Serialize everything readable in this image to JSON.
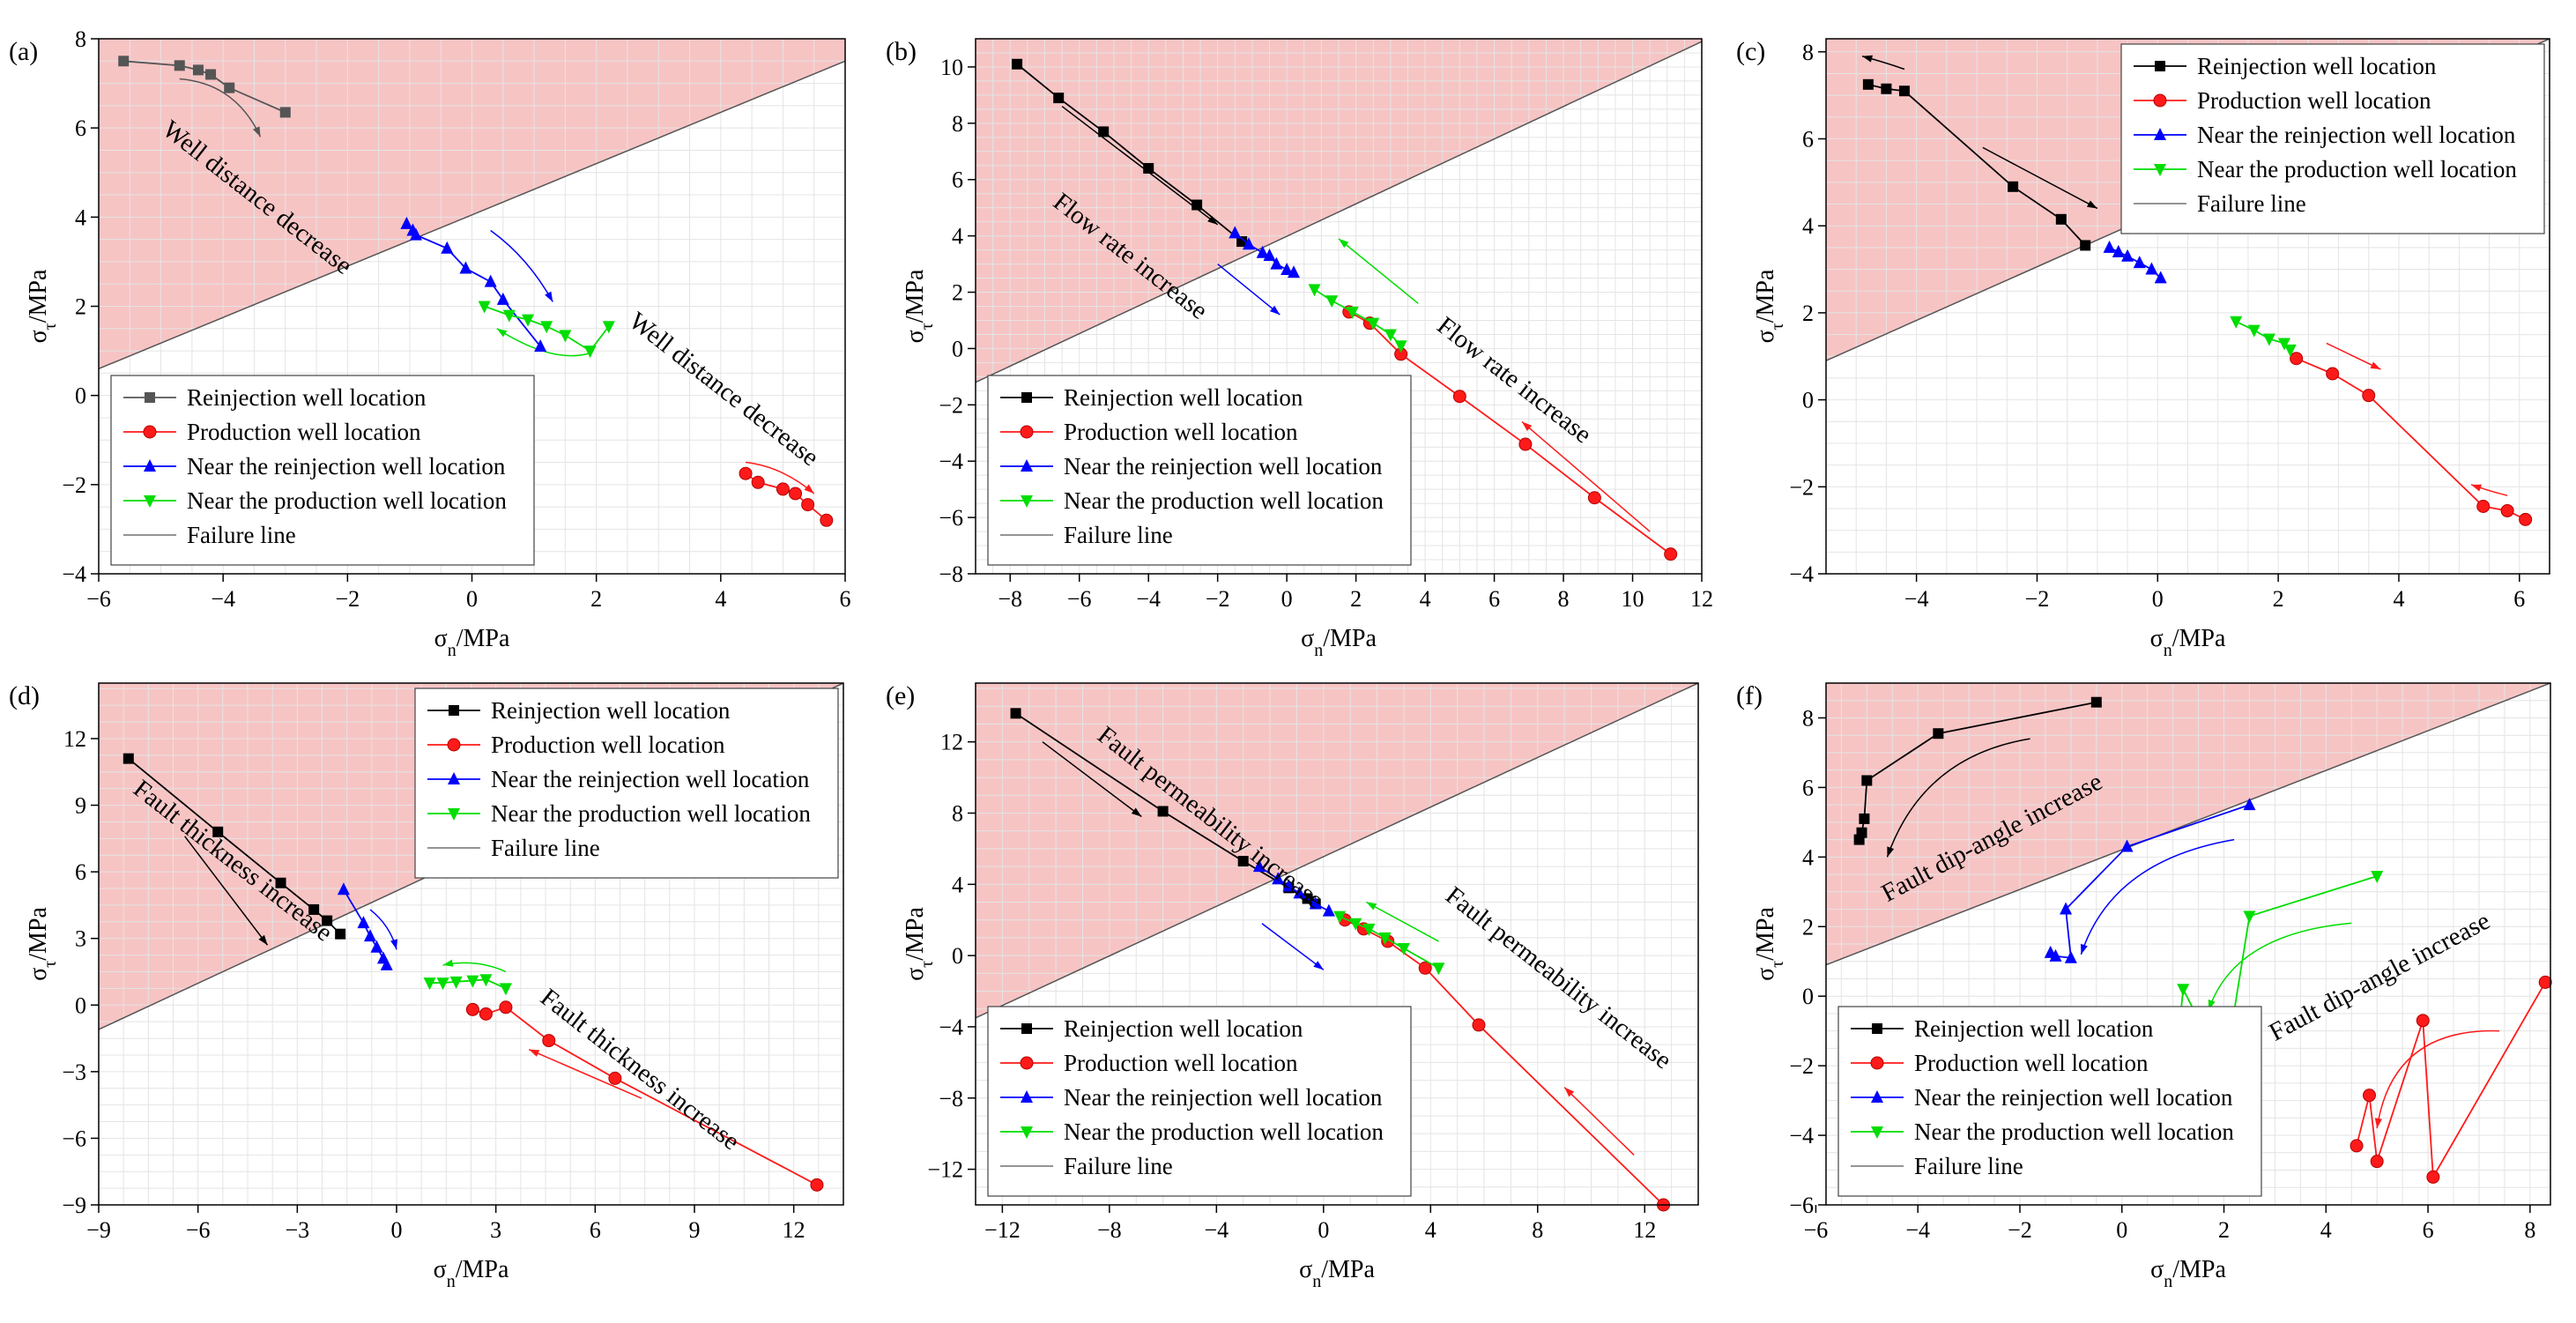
{
  "figure": {
    "tick_marker": ""
  },
  "legend_labels": {
    "reinjection": "Reinjection well location",
    "production": "Production well location",
    "near_reinjection": "Near the reinjection well location",
    "near_production": "Near the production well location",
    "failure": "Failure line"
  },
  "colors": {
    "shade": "#f7c4c4",
    "reinjection_black": "#000000",
    "reinjection_gray": "#555555",
    "production": "#ff1a1a",
    "near_reinjection": "#0000ff",
    "near_production": "#00dd00",
    "failure": "#555555",
    "grid": "#e4e4e4"
  },
  "chart_data": [
    {
      "panel": "(a)",
      "type": "line",
      "xlabel": "σn/MPa",
      "ylabel": "στ/MPa",
      "xlim": [
        -6,
        6
      ],
      "ylim": [
        -4,
        8
      ],
      "xticks": [
        -6,
        -4,
        -2,
        0,
        2,
        4,
        6
      ],
      "yticks": [
        -4,
        -2,
        0,
        2,
        4,
        6,
        8
      ],
      "failure_line": {
        "x": [
          -6,
          6
        ],
        "y": [
          0.6,
          7.5
        ]
      },
      "legend_position": "bottom-left",
      "reinjection_marker": "square-gray",
      "series": [
        {
          "key": "reinjection",
          "x": [
            -5.6,
            -4.7,
            -4.4,
            -4.2,
            -3.9,
            -3.0
          ],
          "y": [
            7.5,
            7.4,
            7.3,
            7.2,
            6.9,
            6.35
          ]
        },
        {
          "key": "production",
          "x": [
            4.4,
            4.6,
            5.0,
            5.2,
            5.4,
            5.7
          ],
          "y": [
            -1.75,
            -1.95,
            -2.1,
            -2.2,
            -2.45,
            -2.8
          ]
        },
        {
          "key": "near_reinjection",
          "x": [
            -1.05,
            -0.95,
            -0.9,
            -0.4,
            -0.1,
            0.3,
            0.5,
            1.1
          ],
          "y": [
            3.85,
            3.7,
            3.6,
            3.3,
            2.85,
            2.55,
            2.15,
            1.1
          ]
        },
        {
          "key": "near_production",
          "x": [
            0.2,
            0.6,
            0.9,
            1.2,
            1.5,
            1.9,
            2.2
          ],
          "y": [
            2.0,
            1.8,
            1.7,
            1.55,
            1.35,
            1.0,
            1.55
          ]
        }
      ],
      "annotations": [
        {
          "text": "Well distance decrease",
          "x": -5.0,
          "y": 5.9,
          "angle": 38
        },
        {
          "text": "Well distance decrease",
          "x": 2.5,
          "y": 1.6,
          "angle": 38
        }
      ],
      "arrows": [
        {
          "color": "reinjection_gray",
          "x1": -4.7,
          "y1": 7.1,
          "x2": -3.4,
          "y2": 5.8,
          "cx": -3.8,
          "cy": 7.0
        },
        {
          "color": "near_reinjection",
          "x1": 0.3,
          "y1": 3.7,
          "x2": 1.3,
          "y2": 2.1,
          "cx": 0.9,
          "cy": 3.1
        },
        {
          "color": "near_production",
          "x1": 1.9,
          "y1": 0.95,
          "x2": 0.4,
          "y2": 1.5,
          "cx": 1.3,
          "cy": 0.7
        },
        {
          "color": "production",
          "x1": 4.4,
          "y1": -1.5,
          "x2": 5.5,
          "y2": -2.2,
          "cx": 5.0,
          "cy": -1.6
        }
      ]
    },
    {
      "panel": "(b)",
      "type": "line",
      "xlabel": "σn/MPa",
      "ylabel": "στ/MPa",
      "xlim": [
        -9,
        12
      ],
      "ylim": [
        -8,
        11
      ],
      "xticks": [
        -8,
        -6,
        -4,
        -2,
        0,
        2,
        4,
        6,
        8,
        10,
        12
      ],
      "yticks": [
        -8,
        -6,
        -4,
        -2,
        0,
        2,
        4,
        6,
        8,
        10
      ],
      "failure_line": {
        "x": [
          -9,
          12
        ],
        "y": [
          -1.2,
          10.9
        ]
      },
      "legend_position": "bottom-left",
      "reinjection_marker": "square-black",
      "series": [
        {
          "key": "reinjection",
          "x": [
            -7.8,
            -6.6,
            -5.3,
            -4.0,
            -2.6,
            -1.3
          ],
          "y": [
            10.1,
            8.9,
            7.7,
            6.4,
            5.1,
            3.8
          ]
        },
        {
          "key": "production",
          "x": [
            1.8,
            2.4,
            3.3,
            5.0,
            6.9,
            8.9,
            11.1
          ],
          "y": [
            1.3,
            0.9,
            -0.2,
            -1.7,
            -3.4,
            -5.3,
            -7.3
          ]
        },
        {
          "key": "near_reinjection",
          "x": [
            -1.5,
            -1.1,
            -0.7,
            -0.5,
            -0.3,
            0.0,
            0.2
          ],
          "y": [
            4.1,
            3.7,
            3.4,
            3.3,
            3.0,
            2.8,
            2.7
          ]
        },
        {
          "key": "near_production",
          "x": [
            0.8,
            1.3,
            1.9,
            2.5,
            3.0,
            3.3
          ],
          "y": [
            2.1,
            1.7,
            1.3,
            0.9,
            0.5,
            0.1
          ]
        }
      ],
      "annotations": [
        {
          "text": "Flow rate increase",
          "x": -6.8,
          "y": 5.1,
          "angle": 38
        },
        {
          "text": "Flow rate increase",
          "x": 4.3,
          "y": 0.7,
          "angle": 38
        }
      ],
      "arrows": [
        {
          "color": "reinjection_black",
          "x1": -6.5,
          "y1": 8.6,
          "x2": -2.0,
          "y2": 4.4,
          "cx": -4.25,
          "cy": 6.5
        },
        {
          "color": "near_reinjection",
          "x1": -2.0,
          "y1": 3.0,
          "x2": -0.2,
          "y2": 1.2,
          "cx": -1.1,
          "cy": 2.1
        },
        {
          "color": "near_production",
          "x1": 3.8,
          "y1": 1.6,
          "x2": 1.5,
          "y2": 3.9,
          "cx": 2.65,
          "cy": 2.75
        },
        {
          "color": "production",
          "x1": 10.5,
          "y1": -6.5,
          "x2": 6.8,
          "y2": -2.6,
          "cx": 8.65,
          "cy": -4.55
        }
      ]
    },
    {
      "panel": "(c)",
      "type": "line",
      "xlabel": "σn/MPa",
      "ylabel": "στ/MPa",
      "xlim": [
        -5.5,
        6.5
      ],
      "ylim": [
        -4,
        8.3
      ],
      "xticks": [
        -4,
        -2,
        0,
        2,
        4,
        6
      ],
      "yticks": [
        -4,
        -2,
        0,
        2,
        4,
        6,
        8
      ],
      "failure_line": {
        "x": [
          -5.5,
          6.5
        ],
        "y": [
          0.9,
          8.3
        ]
      },
      "legend_position": "top-right",
      "reinjection_marker": "square-black",
      "series": [
        {
          "key": "reinjection",
          "x": [
            -4.8,
            -4.5,
            -4.2,
            -2.4,
            -1.6,
            -1.2
          ],
          "y": [
            7.25,
            7.15,
            7.1,
            4.9,
            4.15,
            3.55
          ]
        },
        {
          "key": "production",
          "x": [
            2.3,
            2.9,
            3.5,
            5.4,
            5.8,
            6.1
          ],
          "y": [
            0.95,
            0.6,
            0.1,
            -2.45,
            -2.55,
            -2.75
          ]
        },
        {
          "key": "near_reinjection",
          "x": [
            -0.8,
            -0.65,
            -0.5,
            -0.3,
            -0.1,
            0.05
          ],
          "y": [
            3.5,
            3.4,
            3.3,
            3.15,
            3.0,
            2.8
          ]
        },
        {
          "key": "near_production",
          "x": [
            1.3,
            1.6,
            1.85,
            2.1,
            2.2
          ],
          "y": [
            1.8,
            1.6,
            1.4,
            1.3,
            1.15
          ]
        }
      ],
      "annotations": [],
      "arrows": [
        {
          "color": "reinjection_black",
          "x1": -4.2,
          "y1": 7.6,
          "x2": -4.9,
          "y2": 7.9,
          "cx": -4.5,
          "cy": 7.75
        },
        {
          "color": "reinjection_black",
          "x1": -2.9,
          "y1": 5.8,
          "x2": -1.0,
          "y2": 4.4,
          "cx": -1.95,
          "cy": 5.1
        },
        {
          "color": "production",
          "x1": 2.8,
          "y1": 1.3,
          "x2": 3.7,
          "y2": 0.7,
          "cx": 3.25,
          "cy": 1.0
        },
        {
          "color": "production",
          "x1": 5.8,
          "y1": -2.2,
          "x2": 5.2,
          "y2": -1.95,
          "cx": 5.5,
          "cy": -2.1
        }
      ]
    },
    {
      "panel": "(d)",
      "type": "line",
      "xlabel": "σn/MPa",
      "ylabel": "στ/MPa",
      "xlim": [
        -9,
        13.5
      ],
      "ylim": [
        -9,
        14.5
      ],
      "xticks": [
        -9,
        -6,
        -3,
        0,
        3,
        6,
        9,
        12
      ],
      "yticks": [
        -9,
        -6,
        -3,
        0,
        3,
        6,
        9,
        12
      ],
      "failure_line": {
        "x": [
          -9,
          13.5
        ],
        "y": [
          -1.1,
          14.5
        ]
      },
      "legend_position": "top-right",
      "reinjection_marker": "square-black",
      "series": [
        {
          "key": "reinjection",
          "x": [
            -8.1,
            -5.4,
            -3.5,
            -2.5,
            -2.1,
            -1.7
          ],
          "y": [
            11.1,
            7.8,
            5.5,
            4.3,
            3.8,
            3.2
          ]
        },
        {
          "key": "production",
          "x": [
            2.3,
            2.7,
            3.3,
            4.6,
            6.6,
            12.7
          ],
          "y": [
            -0.2,
            -0.4,
            -0.1,
            -1.6,
            -3.3,
            -8.1
          ]
        },
        {
          "key": "near_reinjection",
          "x": [
            -1.6,
            -1.0,
            -0.8,
            -0.6,
            -0.4,
            -0.3
          ],
          "y": [
            5.2,
            3.7,
            3.1,
            2.6,
            2.1,
            1.8
          ]
        },
        {
          "key": "near_production",
          "x": [
            1.0,
            1.4,
            1.8,
            2.3,
            2.7,
            3.3
          ],
          "y": [
            1.0,
            1.0,
            1.05,
            1.1,
            1.15,
            0.75
          ]
        }
      ],
      "annotations": [
        {
          "text": "Fault thickness increase",
          "x": -8.0,
          "y": 9.6,
          "angle": 38
        },
        {
          "text": "Fault thickness increase",
          "x": 4.3,
          "y": 0.2,
          "angle": 38
        }
      ],
      "arrows": [
        {
          "color": "reinjection_black",
          "x1": -6.4,
          "y1": 7.6,
          "x2": -3.9,
          "y2": 2.7,
          "cx": -5.15,
          "cy": 5.15
        },
        {
          "color": "near_reinjection",
          "x1": -0.8,
          "y1": 4.3,
          "x2": 0.0,
          "y2": 2.5,
          "cx": -0.2,
          "cy": 3.6
        },
        {
          "color": "near_production",
          "x1": 3.3,
          "y1": 1.5,
          "x2": 1.4,
          "y2": 1.8,
          "cx": 2.4,
          "cy": 2.1
        },
        {
          "color": "production",
          "x1": 7.4,
          "y1": -4.2,
          "x2": 4.0,
          "y2": -2.0,
          "cx": 5.7,
          "cy": -3.1
        }
      ]
    },
    {
      "panel": "(e)",
      "type": "line",
      "xlabel": "σn/MPa",
      "ylabel": "στ/MPa",
      "xlim": [
        -13,
        14
      ],
      "ylim": [
        -14,
        15.3
      ],
      "xticks": [
        -12,
        -8,
        -4,
        0,
        4,
        8,
        12
      ],
      "yticks": [
        -12,
        -8,
        -4,
        0,
        4,
        8,
        12
      ],
      "failure_line": {
        "x": [
          -13,
          14
        ],
        "y": [
          -3.5,
          15.3
        ]
      },
      "legend_position": "bottom-left",
      "reinjection_marker": "square-black",
      "series": [
        {
          "key": "reinjection",
          "x": [
            -11.5,
            -6.0,
            -3.0,
            -1.3,
            -0.6,
            -0.3
          ],
          "y": [
            13.6,
            8.1,
            5.3,
            3.8,
            3.2,
            2.9
          ]
        },
        {
          "key": "production",
          "x": [
            0.8,
            1.5,
            2.4,
            3.8,
            5.8,
            12.7
          ],
          "y": [
            2.0,
            1.5,
            0.8,
            -0.7,
            -3.9,
            -14.0
          ]
        },
        {
          "key": "near_reinjection",
          "x": [
            -2.4,
            -1.7,
            -1.3,
            -0.9,
            -0.3,
            0.2
          ],
          "y": [
            5.0,
            4.3,
            3.9,
            3.5,
            2.9,
            2.5
          ]
        },
        {
          "key": "near_production",
          "x": [
            0.6,
            1.2,
            1.7,
            2.3,
            3.0,
            4.3
          ],
          "y": [
            2.2,
            1.8,
            1.5,
            1.0,
            0.4,
            -0.7
          ]
        }
      ],
      "annotations": [
        {
          "text": "Fault permeability increase",
          "x": -8.5,
          "y": 12.2,
          "angle": 38
        },
        {
          "text": "Fault permeability increase",
          "x": 4.5,
          "y": 3.2,
          "angle": 38
        }
      ],
      "arrows": [
        {
          "color": "reinjection_black",
          "x1": -10.5,
          "y1": 12.0,
          "x2": -6.8,
          "y2": 7.8,
          "cx": -8.65,
          "cy": 9.9
        },
        {
          "color": "near_reinjection",
          "x1": -2.3,
          "y1": 1.8,
          "x2": 0.0,
          "y2": -0.8,
          "cx": -1.15,
          "cy": 0.5
        },
        {
          "color": "near_production",
          "x1": 4.3,
          "y1": 0.8,
          "x2": 1.6,
          "y2": 3.0,
          "cx": 2.95,
          "cy": 1.9
        },
        {
          "color": "production",
          "x1": 11.6,
          "y1": -11.2,
          "x2": 9.0,
          "y2": -7.4,
          "cx": 10.3,
          "cy": -9.3
        }
      ]
    },
    {
      "panel": "(f)",
      "type": "line",
      "xlabel": "σn/MPa",
      "ylabel": "στ/MPa",
      "xlim": [
        -5.8,
        8.4
      ],
      "ylim": [
        -6,
        9
      ],
      "xticks": [
        -6,
        -4,
        -2,
        0,
        2,
        4,
        6,
        8
      ],
      "yticks": [
        -6,
        -4,
        -2,
        0,
        2,
        4,
        6,
        8
      ],
      "failure_line": {
        "x": [
          -5.8,
          8.4
        ],
        "y": [
          0.9,
          9.0
        ]
      },
      "legend_position": "bottom-left",
      "reinjection_marker": "square-black",
      "series": [
        {
          "key": "reinjection",
          "x": [
            -5.15,
            -5.1,
            -5.05,
            -5.0,
            -3.6,
            -0.5
          ],
          "y": [
            4.5,
            4.7,
            5.1,
            6.2,
            7.55,
            8.45
          ]
        },
        {
          "key": "production",
          "x": [
            4.6,
            4.85,
            5.0,
            5.9,
            6.1,
            8.3
          ],
          "y": [
            -4.3,
            -2.85,
            -4.75,
            -0.7,
            -5.2,
            0.4
          ]
        },
        {
          "key": "near_reinjection",
          "x": [
            -1.4,
            -1.3,
            -1.0,
            -1.1,
            0.1,
            2.5
          ],
          "y": [
            1.25,
            1.15,
            1.1,
            2.5,
            4.3,
            5.5
          ]
        },
        {
          "key": "near_production",
          "x": [
            1.1,
            1.2,
            1.9,
            2.1,
            2.5,
            5.0
          ],
          "y": [
            -1.3,
            0.2,
            -1.8,
            -1.35,
            2.3,
            3.45
          ]
        }
      ],
      "annotations": [
        {
          "text": "Fault dip-angle increase",
          "x": -4.6,
          "y": 2.7,
          "angle": -28
        },
        {
          "text": "Fault dip-angle increase",
          "x": 3.0,
          "y": -1.3,
          "angle": -28
        }
      ],
      "arrows": [
        {
          "color": "reinjection_black",
          "x1": -1.8,
          "y1": 7.4,
          "x2": -4.6,
          "y2": 4.0,
          "cx": -3.9,
          "cy": 6.9
        },
        {
          "color": "near_reinjection",
          "x1": 2.2,
          "y1": 4.5,
          "x2": -0.8,
          "y2": 1.2,
          "cx": -0.2,
          "cy": 3.9
        },
        {
          "color": "near_production",
          "x1": 4.5,
          "y1": 2.1,
          "x2": 1.7,
          "y2": -0.4,
          "cx": 2.2,
          "cy": 1.8
        },
        {
          "color": "production",
          "x1": 7.4,
          "y1": -1.0,
          "x2": 5.0,
          "y2": -3.8,
          "cx": 5.3,
          "cy": -0.9
        }
      ]
    }
  ]
}
